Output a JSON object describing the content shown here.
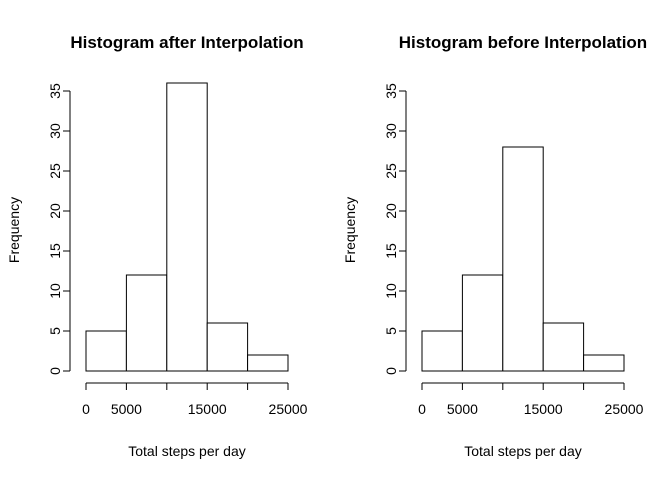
{
  "chart_data": [
    {
      "type": "bar",
      "title": "Histogram after Interpolation",
      "xlabel": "Total steps per day",
      "ylabel": "Frequency",
      "bins": [
        [
          0,
          5000
        ],
        [
          5000,
          10000
        ],
        [
          10000,
          15000
        ],
        [
          15000,
          20000
        ],
        [
          20000,
          25000
        ]
      ],
      "values": [
        5,
        12,
        36,
        6,
        2
      ],
      "xlim": [
        0,
        25000
      ],
      "ylim": [
        0,
        35
      ],
      "xticks": [
        0,
        5000,
        10000,
        15000,
        20000,
        25000
      ],
      "xtick_labels": [
        "0",
        "5000",
        "",
        "15000",
        "",
        "25000"
      ],
      "yticks": [
        0,
        5,
        10,
        15,
        20,
        25,
        30,
        35
      ],
      "ytick_labels": [
        "0",
        "5",
        "10",
        "15",
        "20",
        "25",
        "30",
        "35"
      ],
      "grid": false
    },
    {
      "type": "bar",
      "title": "Histogram before Interpolation",
      "xlabel": "Total steps per day",
      "ylabel": "Frequency",
      "bins": [
        [
          0,
          5000
        ],
        [
          5000,
          10000
        ],
        [
          10000,
          15000
        ],
        [
          15000,
          20000
        ],
        [
          20000,
          25000
        ]
      ],
      "values": [
        5,
        12,
        28,
        6,
        2
      ],
      "xlim": [
        0,
        25000
      ],
      "ylim": [
        0,
        35
      ],
      "xticks": [
        0,
        5000,
        10000,
        15000,
        20000,
        25000
      ],
      "xtick_labels": [
        "0",
        "5000",
        "",
        "15000",
        "",
        "25000"
      ],
      "yticks": [
        0,
        5,
        10,
        15,
        20,
        25,
        30,
        35
      ],
      "ytick_labels": [
        "0",
        "5",
        "10",
        "15",
        "20",
        "25",
        "30",
        "35"
      ],
      "grid": false
    }
  ]
}
